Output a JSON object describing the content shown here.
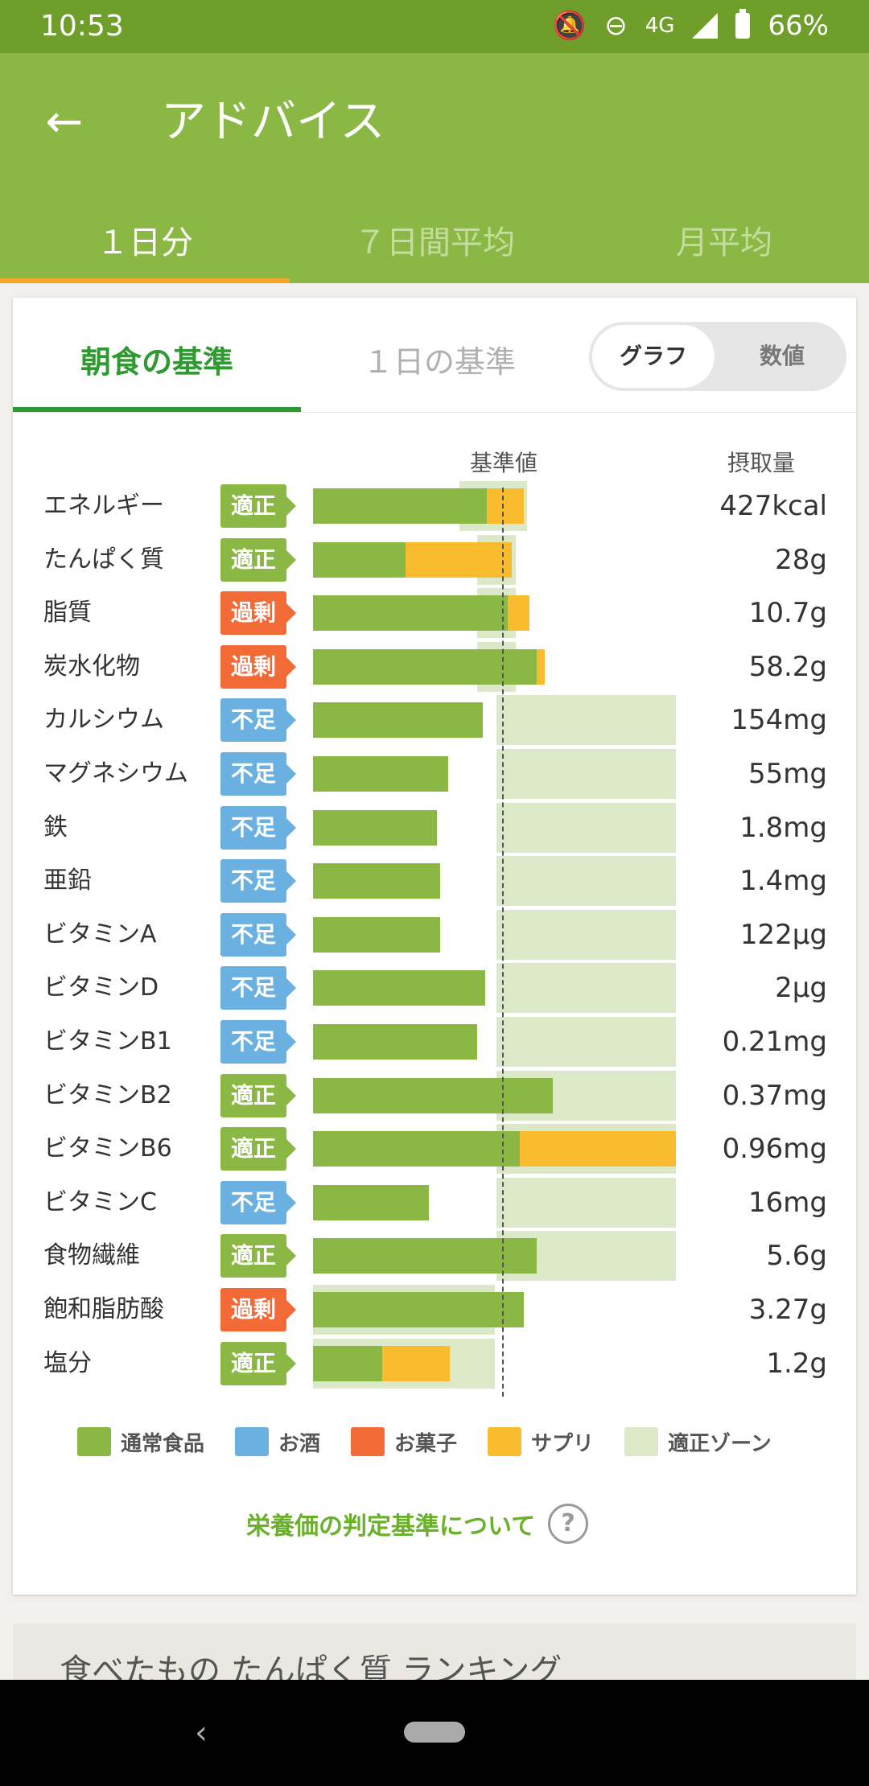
{
  "status_bar": {
    "time": "10:53",
    "network": "4G",
    "battery": "66%",
    "icons": [
      "notifications-off-icon",
      "do-not-disturb-icon",
      "signal-icon",
      "battery-icon"
    ]
  },
  "app_bar": {
    "title": "アドバイス",
    "back_icon": "←"
  },
  "tabs": [
    {
      "label": "１日分",
      "active": true
    },
    {
      "label": "７日間平均",
      "active": false
    },
    {
      "label": "月平均",
      "active": false
    }
  ],
  "card": {
    "subtab_breakfast": "朝食の基準",
    "subtab_daily": "１日の基準",
    "toggle_graph": "グラフ",
    "toggle_numeric": "数値",
    "col_standard": "基準値",
    "col_intake": "摂取量"
  },
  "status_colors": {
    "適正": "#8bb844",
    "過剰": "#f26a35",
    "不足": "#6ab0e0"
  },
  "colors": {
    "normal_food": "#8bb844",
    "supplement": "#fbbb2e",
    "zone": "#dce9c8",
    "alcohol": "#6ab0e0",
    "sweets": "#f26a35"
  },
  "nutrients": [
    {
      "name": "エネルギー",
      "status": "適正",
      "value": "427kcal",
      "food": 90,
      "supplement": 19,
      "zone": [
        76,
        111
      ]
    },
    {
      "name": "たんぱく質",
      "status": "適正",
      "value": "28g",
      "food": 48,
      "supplement": 55,
      "zone": [
        85,
        105
      ]
    },
    {
      "name": "脂質",
      "status": "過剰",
      "value": "10.7g",
      "food": 101,
      "supplement": 11,
      "zone": [
        85,
        105
      ]
    },
    {
      "name": "炭水化物",
      "status": "過剰",
      "value": "58.2g",
      "food": 116,
      "supplement": 4,
      "zone": [
        85,
        105
      ]
    },
    {
      "name": "カルシウム",
      "status": "不足",
      "value": "154mg",
      "food": 88,
      "supplement": 0,
      "zone": [
        95,
        188
      ]
    },
    {
      "name": "マグネシウム",
      "status": "不足",
      "value": "55mg",
      "food": 70,
      "supplement": 0,
      "zone": [
        95,
        188
      ]
    },
    {
      "name": "鉄",
      "status": "不足",
      "value": "1.8mg",
      "food": 64,
      "supplement": 0,
      "zone": [
        95,
        188
      ]
    },
    {
      "name": "亜鉛",
      "status": "不足",
      "value": "1.4mg",
      "food": 66,
      "supplement": 0,
      "zone": [
        95,
        188
      ]
    },
    {
      "name": "ビタミンA",
      "status": "不足",
      "value": "122μg",
      "food": 66,
      "supplement": 0,
      "zone": [
        95,
        188
      ]
    },
    {
      "name": "ビタミンD",
      "status": "不足",
      "value": "2μg",
      "food": 89,
      "supplement": 0,
      "zone": [
        95,
        188
      ]
    },
    {
      "name": "ビタミンB1",
      "status": "不足",
      "value": "0.21mg",
      "food": 85,
      "supplement": 0,
      "zone": [
        95,
        188
      ]
    },
    {
      "name": "ビタミンB2",
      "status": "適正",
      "value": "0.37mg",
      "food": 124,
      "supplement": 0,
      "zone": [
        95,
        188
      ]
    },
    {
      "name": "ビタミンB6",
      "status": "適正",
      "value": "0.96mg",
      "food": 107,
      "supplement": 81,
      "zone": [
        95,
        188
      ]
    },
    {
      "name": "ビタミンC",
      "status": "不足",
      "value": "16mg",
      "food": 60,
      "supplement": 0,
      "zone": [
        95,
        188
      ]
    },
    {
      "name": "食物繊維",
      "status": "適正",
      "value": "5.6g",
      "food": 116,
      "supplement": 0,
      "zone": [
        95,
        188
      ]
    },
    {
      "name": "飽和脂肪酸",
      "status": "過剰",
      "value": "3.27g",
      "food": 109,
      "supplement": 0,
      "zone": [
        0,
        94
      ]
    },
    {
      "name": "塩分",
      "status": "適正",
      "value": "1.2g",
      "food": 36,
      "supplement": 35,
      "zone": [
        0,
        94
      ]
    }
  ],
  "legend": [
    {
      "label": "通常食品",
      "color": "#8bb844"
    },
    {
      "label": "お酒",
      "color": "#6ab0e0"
    },
    {
      "label": "お菓子",
      "color": "#f26a35"
    },
    {
      "label": "サプリ",
      "color": "#fbbb2e"
    },
    {
      "label": "適正ゾーン",
      "color": "#dce9c8"
    }
  ],
  "footer_link": "栄養価の判定基準について",
  "next_section_title": "食べたもの たんぱく質 ランキング"
}
